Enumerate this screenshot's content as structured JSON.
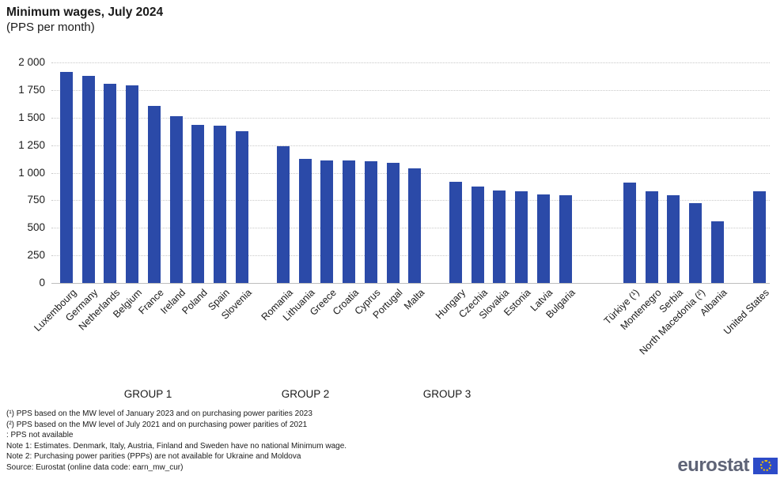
{
  "page": {
    "title": "Minimum wages, July 2024",
    "subtitle": "(PPS per month)"
  },
  "chart_data": {
    "type": "bar",
    "title": "Minimum wages, July 2024",
    "subtitle": "(PPS per month)",
    "unit": "PPS per month",
    "bar_color": "#2B4AA8",
    "ylim": [
      0,
      2000
    ],
    "ytick_step": 250,
    "yticks": [
      "2 000",
      "1 750",
      "1 500",
      "1 250",
      "1 000",
      "750",
      "500",
      "250",
      "0"
    ],
    "grid": "horizontal-dotted",
    "legend": "none",
    "groups": [
      {
        "caption": "GROUP 1",
        "categories": [
          "Luxembourg",
          "Germany",
          "Netherlands",
          "Belgium",
          "France",
          "Ireland",
          "Poland",
          "Spain",
          "Slovenia"
        ],
        "values": [
          1913,
          1878,
          1810,
          1790,
          1606,
          1516,
          1437,
          1427,
          1380
        ]
      },
      {
        "caption": "GROUP 2",
        "categories": [
          "Romania",
          "Lithuania",
          "Greece",
          "Croatia",
          "Cyprus",
          "Portugal",
          "Malta"
        ],
        "values": [
          1241,
          1129,
          1112,
          1110,
          1105,
          1093,
          1038
        ]
      },
      {
        "caption": "GROUP 3",
        "categories": [
          "Hungary",
          "Czechia",
          "Slovakia",
          "Estonia",
          "Latvia",
          "Bulgaria"
        ],
        "values": [
          921,
          878,
          840,
          833,
          804,
          797
        ]
      },
      {
        "caption": "",
        "categories": [
          "Türkiye (¹)",
          "Montenegro",
          "Serbia",
          "North Macedonia (²)",
          "Albania"
        ],
        "values": [
          914,
          830,
          797,
          727,
          556
        ]
      },
      {
        "caption": "",
        "categories": [
          "United States"
        ],
        "values": [
          833
        ]
      }
    ]
  },
  "footnotes": [
    "(¹) PPS based on the MW level of January 2023  and on purchasing power parities 2023",
    "(²) PPS based on the MW level of July 2021  and on purchasing power parities of 2021",
    ":  PPS not available",
    "Note 1: Estimates. Denmark, Italy, Austria, Finland and Sweden have no national Minimum wage.",
    "Note 2: Purchasing power parities (PPPs) are not available for Ukraine and Moldova",
    "Source: Eurostat (online data code: earn_mw_cur)"
  ],
  "logo": {
    "text": "eurostat"
  }
}
